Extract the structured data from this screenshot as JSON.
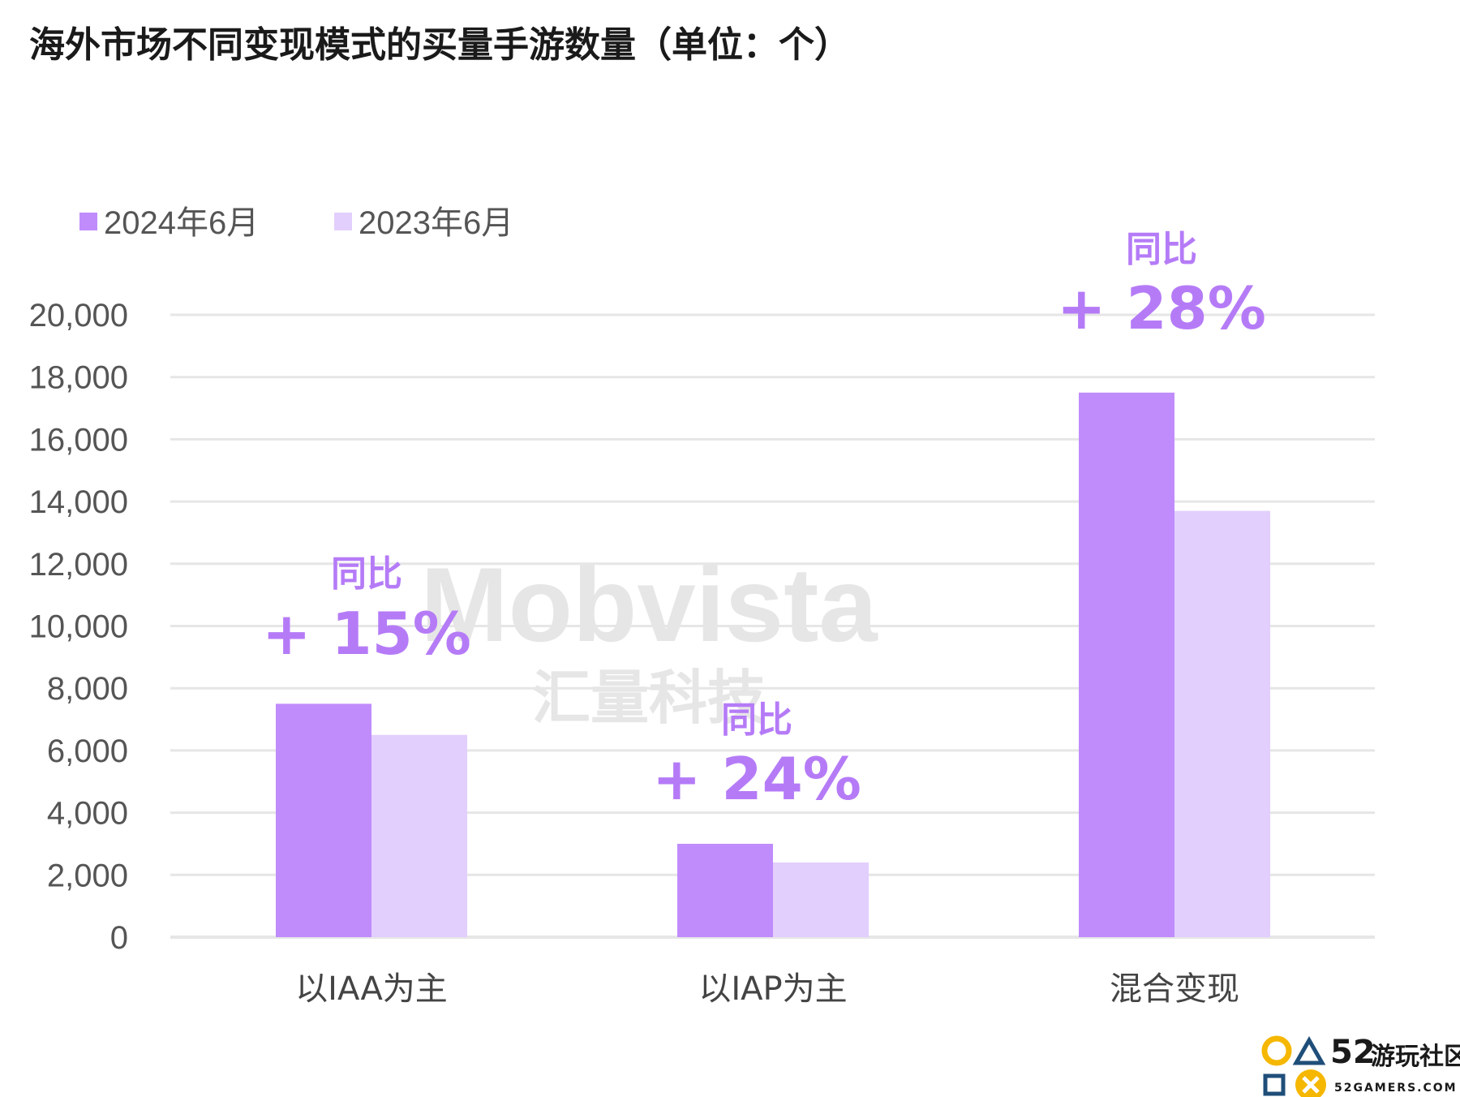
{
  "colors": {
    "series_2024": "#c08cfc",
    "series_2023": "#e2cffd",
    "annotation": "#b57bf7",
    "grid": "#e6e6e6",
    "axis_text": "#555555",
    "title": "#1a1a1a",
    "watermark": "#e6e6e6",
    "logo_yellow": "#f5b700",
    "logo_dark": "#1f4e79"
  },
  "chart_data": {
    "type": "bar",
    "title": "海外市场不同变现模式的买量手游数量（单位：个）",
    "categories": [
      "以IAA为主",
      "以IAP为主",
      "混合变现"
    ],
    "series": [
      {
        "name": "2024年6月",
        "values": [
          7500,
          3000,
          17500
        ]
      },
      {
        "name": "2023年6月",
        "values": [
          6500,
          2400,
          13700
        ]
      }
    ],
    "ylim": [
      0,
      20000
    ],
    "yticks": [
      "0",
      "2,000",
      "4,000",
      "6,000",
      "8,000",
      "10,000",
      "12,000",
      "14,000",
      "16,000",
      "18,000",
      "20,000"
    ],
    "ytick_values": [
      0,
      2000,
      4000,
      6000,
      8000,
      10000,
      12000,
      14000,
      16000,
      18000,
      20000
    ],
    "grid": true,
    "legend_position": "top-left",
    "annotations": [
      {
        "label": "同比",
        "value": "+ 15%"
      },
      {
        "label": "同比",
        "value": "+ 24%"
      },
      {
        "label": "同比",
        "value": "+ 28%"
      }
    ]
  },
  "watermark": {
    "brand": "Mobvista",
    "sub": "汇量科技"
  },
  "logo": {
    "number": "52",
    "name": "游玩社区",
    "sub": "52GAMERS.COM"
  }
}
